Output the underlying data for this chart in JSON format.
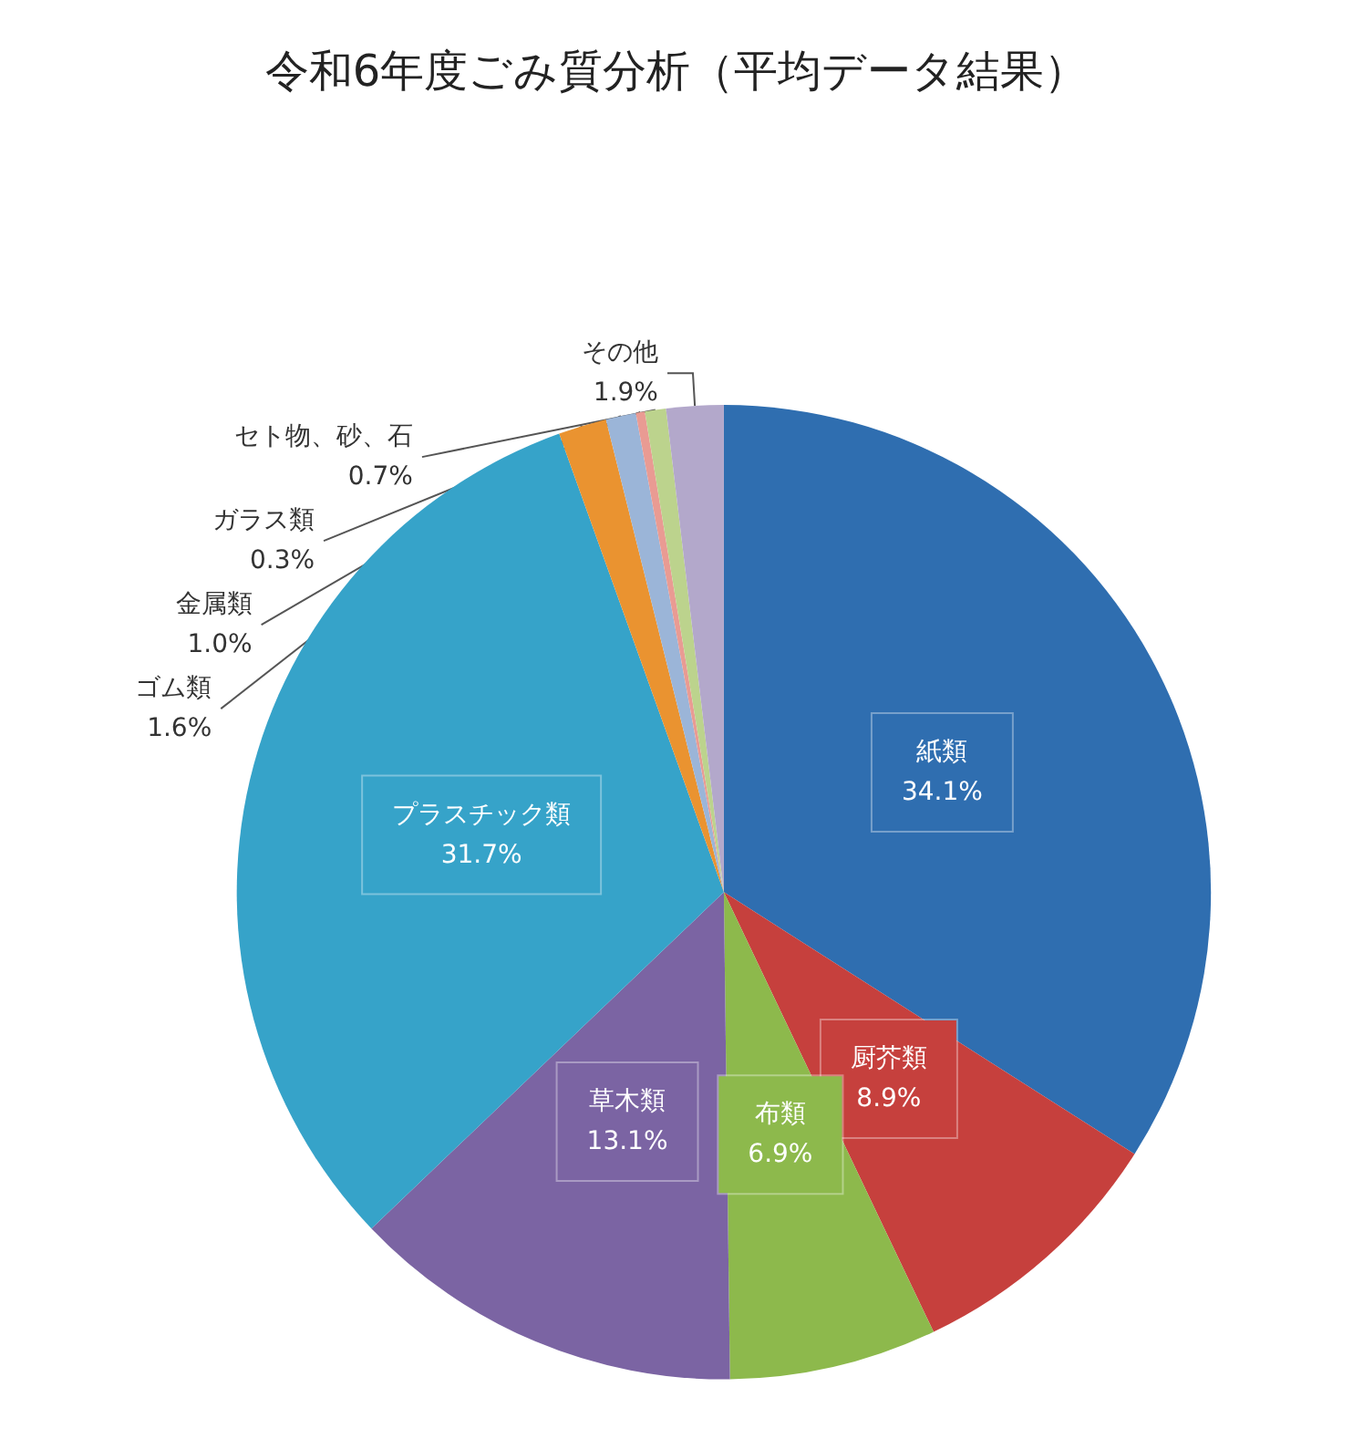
{
  "chart_data": {
    "type": "pie",
    "title": "令和6年度ごみ質分析（平均データ結果）",
    "categories": [
      "紙類",
      "厨芥類",
      "布類",
      "草木類",
      "プラスチック類",
      "ゴム類",
      "金属類",
      "ガラス類",
      "セト物、砂、石",
      "その他"
    ],
    "values": [
      34.1,
      8.9,
      6.9,
      13.1,
      31.7,
      1.6,
      1.0,
      0.3,
      0.7,
      1.9
    ],
    "value_labels": [
      "34.1%",
      "8.9%",
      "6.9%",
      "13.1%",
      "31.7%",
      "1.6%",
      "1.0%",
      "0.3%",
      "0.7%",
      "1.9%"
    ],
    "colors": [
      "#2f6eb0",
      "#c6403d",
      "#8db94c",
      "#7b64a3",
      "#36a3c9",
      "#ea9330",
      "#9bb5d8",
      "#e99b93",
      "#bcd38d",
      "#b3a8cb"
    ],
    "legend": false
  }
}
